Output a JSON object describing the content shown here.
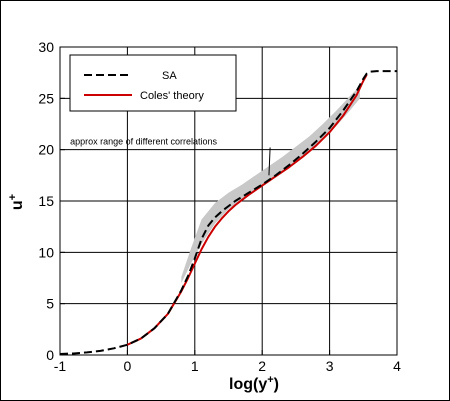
{
  "chart_data": {
    "type": "line",
    "title": "",
    "xlabel": "log(y",
    "xlabel_sup": "+",
    "xlabel_close": ")",
    "ylabel": "u",
    "ylabel_sup": "+",
    "xlim": [
      -1,
      4
    ],
    "ylim": [
      0,
      30
    ],
    "xticks": [
      -1,
      0,
      1,
      2,
      3,
      4
    ],
    "yticks": [
      0,
      5,
      10,
      15,
      20,
      25,
      30
    ],
    "grid": true,
    "legend_position": "top-left",
    "annotation": {
      "text": "approx range of different correlations",
      "points_to": [
        2.1,
        17.5
      ],
      "text_at": [
        -0.85,
        20.5
      ]
    },
    "band": {
      "name": "approx range of different correlations",
      "color": "#c8c8c8",
      "x": [
        0.8,
        0.95,
        1.1,
        1.3,
        1.5,
        1.7,
        1.9,
        2.1,
        2.3,
        2.5,
        2.7,
        2.9,
        3.1,
        3.3,
        3.45
      ],
      "low": [
        7.0,
        9.0,
        10.8,
        12.8,
        14.2,
        15.2,
        16.1,
        16.9,
        17.8,
        18.8,
        19.9,
        21.0,
        22.3,
        23.8,
        25.0
      ],
      "high": [
        7.6,
        10.5,
        13.2,
        14.8,
        15.8,
        16.6,
        17.5,
        18.4,
        19.3,
        20.3,
        21.3,
        22.5,
        23.8,
        25.2,
        26.2
      ]
    },
    "series": [
      {
        "name": "SA",
        "style": "dashed",
        "color": "#000000",
        "x": [
          -1.0,
          -0.8,
          -0.6,
          -0.4,
          -0.2,
          0.0,
          0.2,
          0.4,
          0.6,
          0.8,
          0.9,
          1.0,
          1.1,
          1.2,
          1.3,
          1.4,
          1.5,
          1.6,
          1.7,
          1.8,
          2.0,
          2.2,
          2.4,
          2.6,
          2.8,
          3.0,
          3.2,
          3.4,
          3.5,
          3.55,
          3.6,
          3.7,
          3.8,
          4.0
        ],
        "y": [
          0.1,
          0.15,
          0.25,
          0.4,
          0.65,
          1.0,
          1.6,
          2.6,
          4.0,
          6.3,
          7.7,
          9.4,
          11.3,
          12.6,
          13.4,
          14.0,
          14.5,
          15.0,
          15.4,
          15.8,
          16.6,
          17.5,
          18.5,
          19.6,
          20.8,
          22.1,
          23.8,
          25.7,
          26.9,
          27.4,
          27.6,
          27.65,
          27.65,
          27.65
        ]
      },
      {
        "name": "Coles' theory",
        "style": "solid",
        "color": "#cc0000",
        "x": [
          0.0,
          0.2,
          0.4,
          0.6,
          0.8,
          0.9,
          1.0,
          1.1,
          1.2,
          1.3,
          1.4,
          1.5,
          1.6,
          1.7,
          1.8,
          2.0,
          2.2,
          2.4,
          2.6,
          2.8,
          3.0,
          3.2,
          3.4,
          3.5,
          3.55
        ],
        "y": [
          1.0,
          1.6,
          2.6,
          4.0,
          6.2,
          7.5,
          8.9,
          10.3,
          11.5,
          12.5,
          13.3,
          14.0,
          14.6,
          15.1,
          15.6,
          16.5,
          17.4,
          18.3,
          19.3,
          20.4,
          21.7,
          23.3,
          25.3,
          26.7,
          27.3
        ]
      }
    ]
  }
}
